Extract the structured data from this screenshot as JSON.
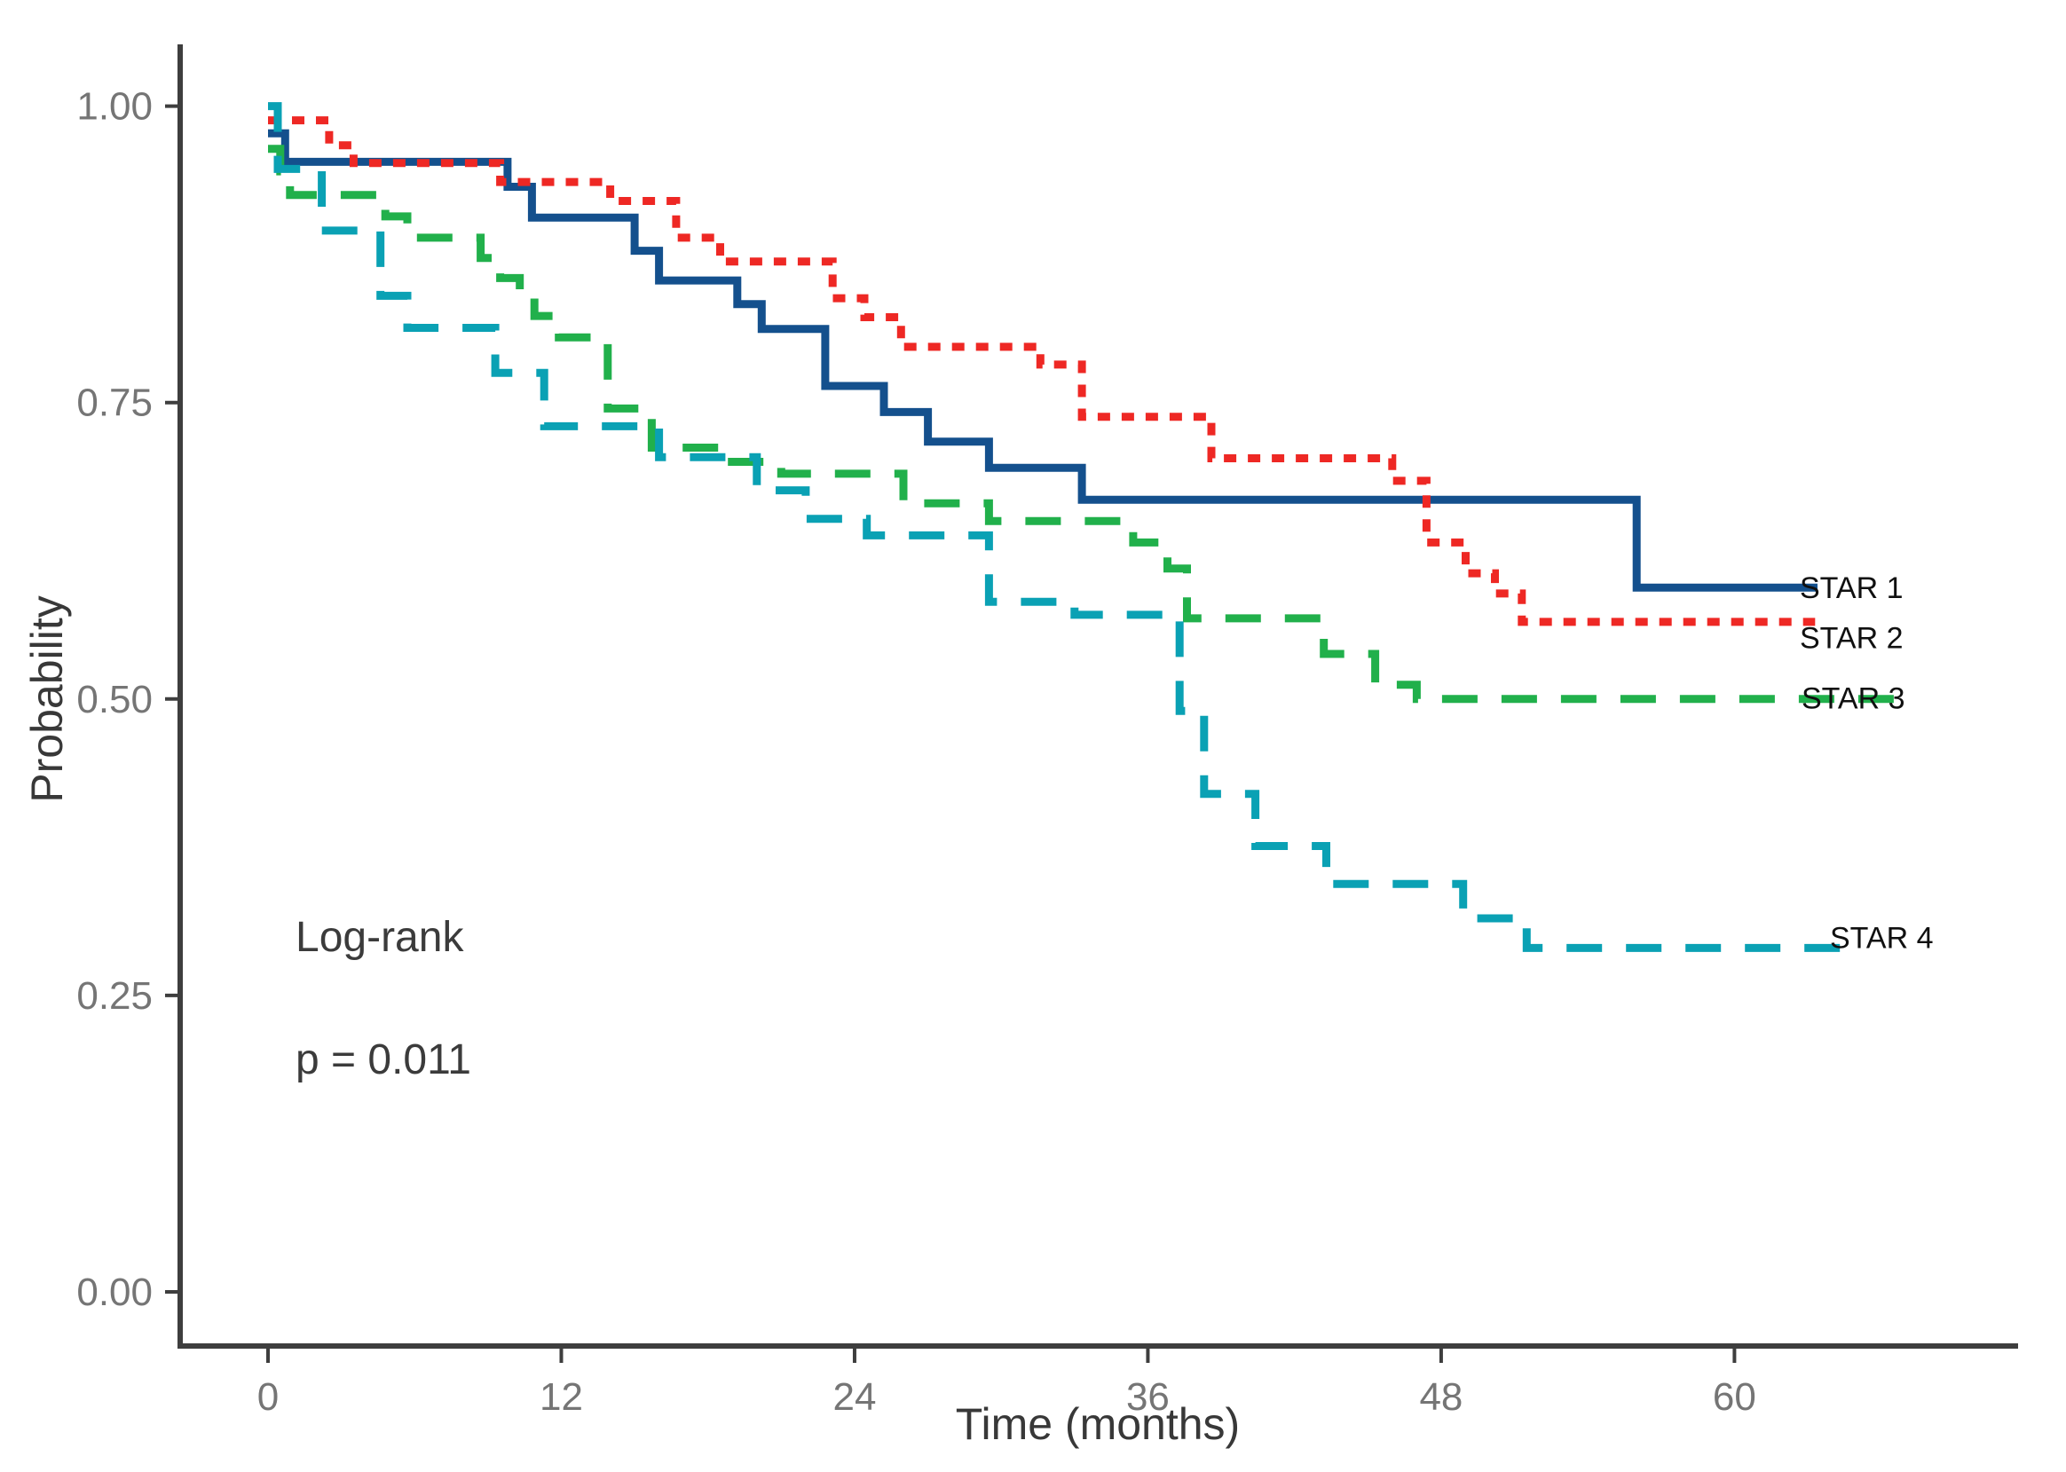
{
  "chart_data": {
    "type": "line",
    "subtype": "kaplan-meier-step-curves",
    "title": "",
    "xlabel": "Time (months)",
    "ylabel": "Probability",
    "xlim": [
      0,
      68
    ],
    "ylim": [
      0,
      1.0
    ],
    "grid": false,
    "legend_position": "right-end-of-curve-labels",
    "x_ticks": [
      {
        "v": 0,
        "label": "0"
      },
      {
        "v": 12,
        "label": "12"
      },
      {
        "v": 24,
        "label": "24"
      },
      {
        "v": 36,
        "label": "36"
      },
      {
        "v": 48,
        "label": "48"
      },
      {
        "v": 60,
        "label": "60"
      }
    ],
    "y_ticks": [
      {
        "v": 0.0,
        "label": "0.00"
      },
      {
        "v": 0.25,
        "label": "0.25"
      },
      {
        "v": 0.5,
        "label": "0.50"
      },
      {
        "v": 0.75,
        "label": "0.75"
      },
      {
        "v": 1.0,
        "label": "1.00"
      }
    ],
    "annotations": {
      "test": "Log-rank",
      "p_value": "p = 0.011"
    },
    "series": [
      {
        "name": "STAR 1",
        "style": "solid",
        "color": "#14508d",
        "points": [
          [
            0,
            0.977
          ],
          [
            0.7,
            0.953
          ],
          [
            9.8,
            0.932
          ],
          [
            10.8,
            0.906
          ],
          [
            15,
            0.878
          ],
          [
            16,
            0.853
          ],
          [
            19.2,
            0.833
          ],
          [
            20.2,
            0.812
          ],
          [
            22.8,
            0.764
          ],
          [
            25.2,
            0.742
          ],
          [
            27,
            0.717
          ],
          [
            29.5,
            0.695
          ],
          [
            33.3,
            0.668
          ],
          [
            56,
            0.594
          ]
        ],
        "end_t": 63.4,
        "label_x": 2028,
        "label_p": 0.594
      },
      {
        "name": "STAR 2",
        "style": "dotted",
        "color": "#ee2824",
        "points": [
          [
            0,
            0.988
          ],
          [
            2.5,
            0.967
          ],
          [
            3.5,
            0.952
          ],
          [
            9.5,
            0.936
          ],
          [
            14,
            0.92
          ],
          [
            16.7,
            0.889
          ],
          [
            18.5,
            0.869
          ],
          [
            23.1,
            0.838
          ],
          [
            24.4,
            0.822
          ],
          [
            25.9,
            0.797
          ],
          [
            31.6,
            0.782
          ],
          [
            33.3,
            0.738
          ],
          [
            38.6,
            0.703
          ],
          [
            46,
            0.684
          ],
          [
            47.4,
            0.632
          ],
          [
            49,
            0.606
          ],
          [
            50.2,
            0.589
          ],
          [
            51.3,
            0.565
          ]
        ],
        "end_t": 63.3,
        "label_x": 2028,
        "label_p": 0.552
      },
      {
        "name": "STAR 3",
        "style": "dashed",
        "color": "#21b04b",
        "points": [
          [
            0,
            0.964
          ],
          [
            0.5,
            0.945
          ],
          [
            0.9,
            0.925
          ],
          [
            4.8,
            0.907
          ],
          [
            5.7,
            0.889
          ],
          [
            8.7,
            0.872
          ],
          [
            9.5,
            0.855
          ],
          [
            10.3,
            0.84
          ],
          [
            10.9,
            0.823
          ],
          [
            11.9,
            0.805
          ],
          [
            13.9,
            0.745
          ],
          [
            15.7,
            0.712
          ],
          [
            18.5,
            0.7
          ],
          [
            21,
            0.69
          ],
          [
            26,
            0.665
          ],
          [
            29.5,
            0.65
          ],
          [
            35.4,
            0.632
          ],
          [
            36.8,
            0.61
          ],
          [
            37.6,
            0.568
          ],
          [
            43.2,
            0.538
          ],
          [
            45.3,
            0.512
          ],
          [
            47,
            0.5
          ]
        ],
        "end_t": 66.8,
        "label_x": 2030,
        "label_p": 0.501
      },
      {
        "name": "STAR 4",
        "style": "dashed",
        "color": "#0aa1b4",
        "points": [
          [
            0,
            1.0
          ],
          [
            0.4,
            0.947
          ],
          [
            2.2,
            0.895
          ],
          [
            4.6,
            0.84
          ],
          [
            5.7,
            0.813
          ],
          [
            9.3,
            0.775
          ],
          [
            11.3,
            0.73
          ],
          [
            16,
            0.704
          ],
          [
            20,
            0.676
          ],
          [
            22,
            0.652
          ],
          [
            24.5,
            0.638
          ],
          [
            29.5,
            0.582
          ],
          [
            33,
            0.571
          ],
          [
            37.3,
            0.49
          ],
          [
            38.3,
            0.42
          ],
          [
            40.4,
            0.376
          ],
          [
            43.3,
            0.344
          ],
          [
            48.9,
            0.315
          ],
          [
            51.5,
            0.29
          ]
        ],
        "end_t": 65,
        "label_x": 2062,
        "label_p": 0.299
      }
    ]
  }
}
